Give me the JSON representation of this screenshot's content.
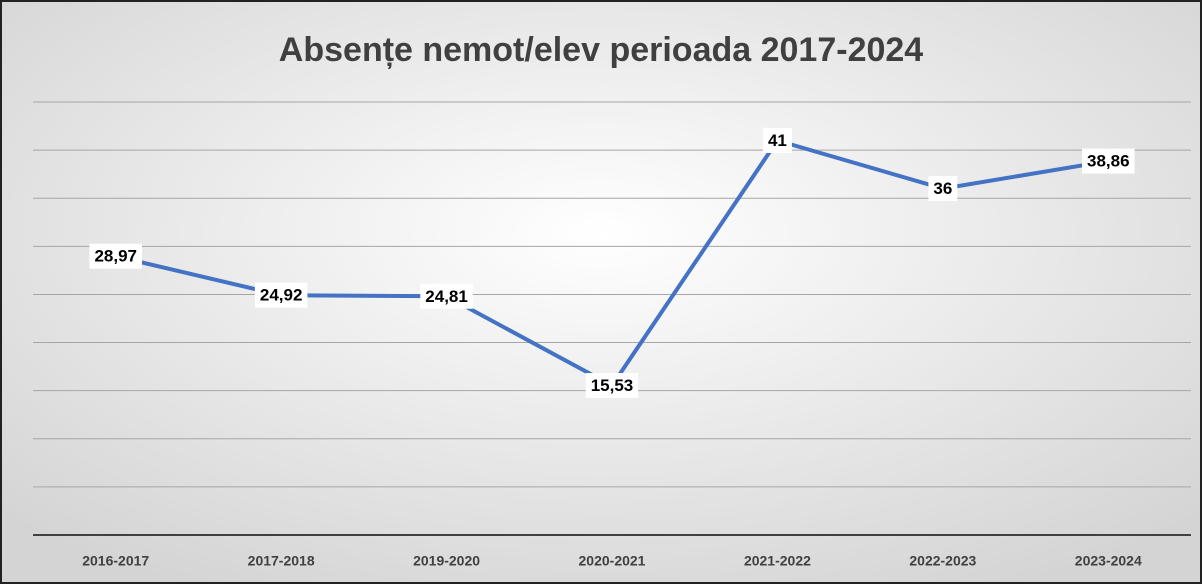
{
  "chart_data": {
    "type": "line",
    "title": "Absențe nemot/elev perioada 2017-2024",
    "categories": [
      "2016-2017",
      "2017-2018",
      "2019-2020",
      "2020-2021",
      "2021-2022",
      "2022-2023",
      "2023-2024"
    ],
    "series": [
      {
        "name": "Absențe nemot/elev",
        "color": "#4472c4",
        "values": [
          28.97,
          24.92,
          24.81,
          15.53,
          41,
          36,
          38.86
        ],
        "value_labels": [
          "28,97",
          "24,92",
          "24,81",
          "15,53",
          "41",
          "36",
          "38,86"
        ]
      }
    ],
    "ylim": [
      0,
      45
    ],
    "yticks": [
      0,
      5,
      10,
      15,
      20,
      25,
      30,
      35,
      40,
      45
    ],
    "grid": true
  }
}
